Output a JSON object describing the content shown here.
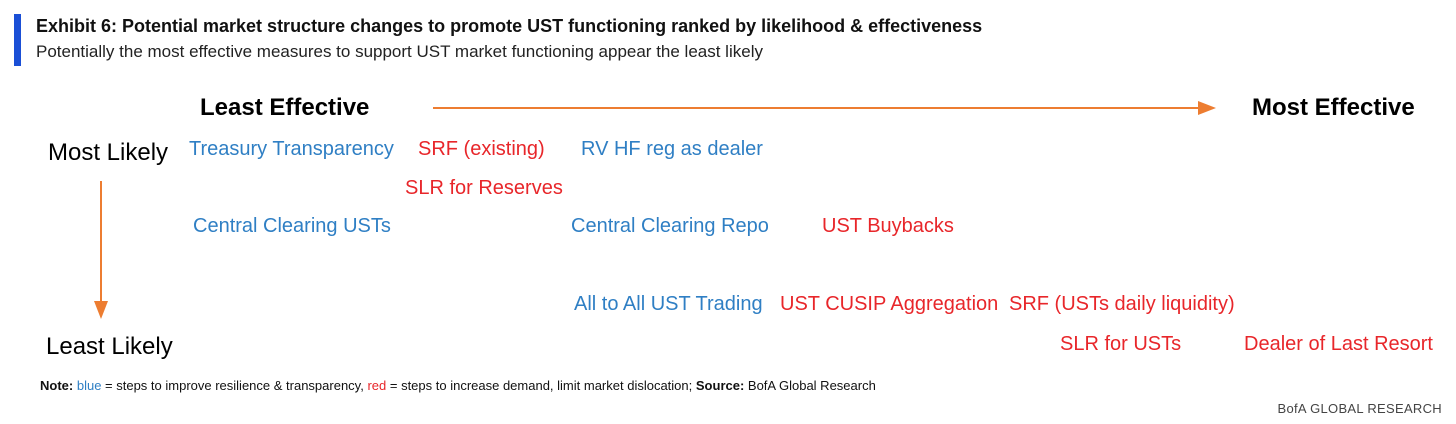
{
  "header": {
    "title": "Exhibit 6: Potential market structure changes to promote UST functioning ranked by likelihood & effectiveness",
    "subtitle": "Potentially the most effective measures to support UST market functioning appear the least likely"
  },
  "axes": {
    "x_start": "Least Effective",
    "x_end": "Most Effective",
    "y_start": "Most Likely",
    "y_end": "Least Likely"
  },
  "items": {
    "treasury_transparency": "Treasury Transparency",
    "srf_existing": "SRF (existing)",
    "rv_hf_reg": "RV HF reg as dealer",
    "slr_reserves": "SLR for Reserves",
    "central_clearing_usts": "Central Clearing USTs",
    "central_clearing_repo": "Central Clearing Repo",
    "ust_buybacks": "UST Buybacks",
    "all_to_all": "All to All UST Trading",
    "ust_cusip": "UST CUSIP Aggregation",
    "srf_usts_daily": "SRF (USTs daily liquidity)",
    "slr_usts": "SLR for USTs",
    "dealer_last_resort": "Dealer of Last Resort"
  },
  "note": {
    "label": "Note:",
    "blue_word": "blue",
    "blue_text": " = steps to improve resilience & transparency,",
    "red_word": "red",
    "red_text": " = steps to increase demand, limit market dislocation;",
    "source_label": "Source:",
    "source_text": " BofA Global Research"
  },
  "brand": "BofA GLOBAL RESEARCH",
  "colors": {
    "accent_bar": "#1a4fd6",
    "arrow": "#ed7d31",
    "blue_items": "#2f7fc4",
    "red_items": "#e8262a"
  }
}
